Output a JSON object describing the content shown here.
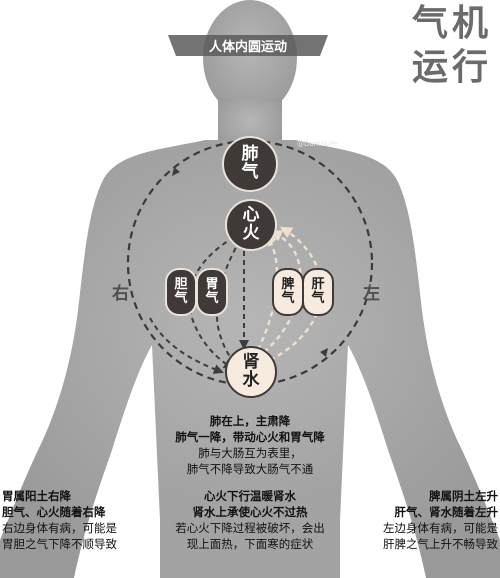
{
  "corner_title": {
    "line1": "气机",
    "line2": "运行"
  },
  "ribbon_label": "人体内圆运动",
  "watermark": "@DamoLife",
  "sides": {
    "right": "右",
    "left": "左"
  },
  "nodes": {
    "lung": [
      "肺",
      "气"
    ],
    "heart": [
      "心",
      "火"
    ],
    "gallbladder": [
      "胆",
      "气"
    ],
    "stomach": [
      "胃",
      "气"
    ],
    "spleen": [
      "脾",
      "气"
    ],
    "liver": [
      "肝",
      "气"
    ],
    "kidney": [
      "肾",
      "水"
    ]
  },
  "captions": {
    "center_top": {
      "line1": "肺在上，主肃降",
      "line2": "肺气一降，带动心火和胃气降",
      "line3": "肺与大肠互为表里，",
      "line4": "肺气不降导致大肠气不通"
    },
    "center_bottom": {
      "line1": "心火下行温暖肾水",
      "line2": "肾水上承使心火不过热",
      "line3": "若心火下降过程被破坏，会出",
      "line4": "现上面热，下面寒的症状"
    },
    "left": {
      "line1": "胃属阳土右降",
      "line2": "胆气、心火随着右降",
      "line3": "右边身体有病，可能是",
      "line4": "胃胆之气下降不顺导致"
    },
    "right": {
      "line1": "脾属阴土左升",
      "line2": "肝气、肾水随着左升",
      "line3": "左边身体有病，可能是",
      "line4": "肝脾之气上升不畅导致"
    }
  },
  "colors": {
    "silhouette": "#a7a7a7",
    "dark_node": "#3f3a37",
    "light_node": "#f7ebe0",
    "descend_arrow": "#3d3d3d",
    "ascend_arrow": "#efe0cf"
  }
}
